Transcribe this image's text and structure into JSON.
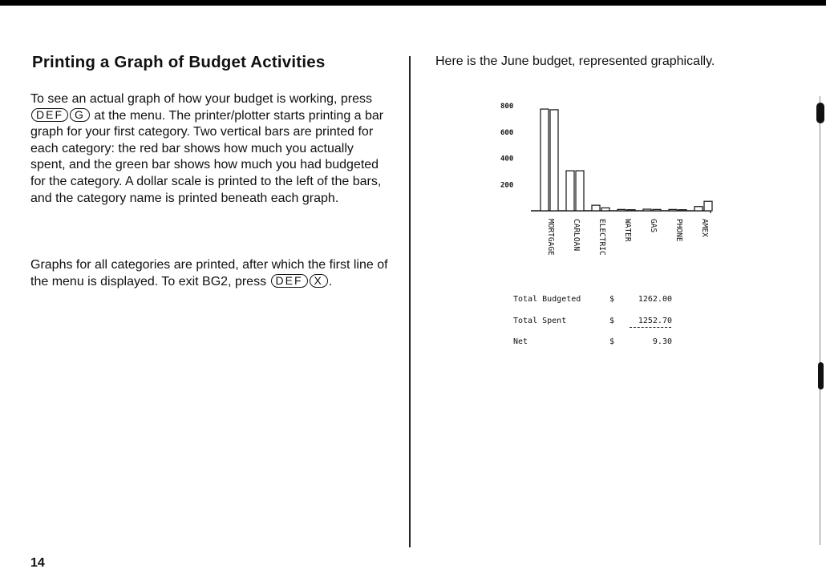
{
  "left": {
    "title": "Printing a Graph of Budget Activities",
    "p1": {
      "a": "To see an actual graph of how your budget is working, press",
      "key1": "DEF",
      "key2": "G",
      "b": "at the menu. The printer/plotter starts printing a bar graph for your first category. Two vertical bars are printed for each category: the red bar shows how much you actually spent, and the green bar shows how much you had budgeted for the category. A dollar scale is printed to the left of the bars, and the category name is printed beneath each graph."
    },
    "p2": {
      "a": "Graphs for all categories are printed, after which the first line of the menu is displayed. To exit BG2, press",
      "key1": "DEF",
      "key2": "X",
      "b": "."
    },
    "page_number": "14"
  },
  "right": {
    "intro": "Here is the June budget, represented graphically.",
    "totals": {
      "budgeted_label": "Total Budgeted",
      "budgeted_currency": "$",
      "budgeted_value": "1262.00",
      "spent_label": "Total Spent",
      "spent_currency": "$",
      "spent_value": "1252.70",
      "net_label": "Net",
      "net_currency": "$",
      "net_value": "9.30"
    }
  },
  "chart_data": {
    "type": "bar",
    "categories": [
      "MORTGAGE",
      "CARLOAN",
      "ELECTRIC",
      "WATER",
      "GAS",
      "PHONE",
      "AMEX"
    ],
    "series": [
      {
        "values": [
          775,
          305,
          42,
          10,
          12,
          10,
          32
        ]
      },
      {
        "values": [
          770,
          305,
          22,
          8,
          10,
          8,
          72
        ]
      }
    ],
    "yticks": [
      "200",
      "400",
      "600",
      "800"
    ],
    "ytick_values": [
      200,
      400,
      600,
      800
    ],
    "ylim": [
      0,
      800
    ],
    "grid": false,
    "legend": "none"
  }
}
